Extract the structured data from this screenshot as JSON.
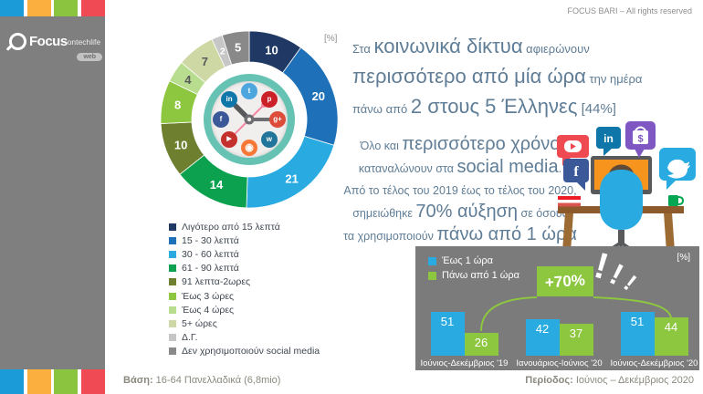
{
  "page": {
    "copyright": "FOCUS BARI – All rights reserved"
  },
  "sidebar": {
    "logo_focus": "Focus",
    "logo_suffix": "ontechlife",
    "badge": "web"
  },
  "decor_squares": [
    "#1b9cd8",
    "#fbaf3f",
    "#8bc540",
    "#f04b54"
  ],
  "headline1": {
    "lines": [
      [
        {
          "text": "Στα ",
          "size": "sm"
        },
        {
          "text": "κοινωνικά δίκτυα",
          "size": "lg"
        },
        {
          "text": " αφιερώνουν",
          "size": "sm"
        }
      ],
      [
        {
          "text": "περισσότερο από μία ώρα",
          "size": "lg"
        },
        {
          "text": " την ημέρα",
          "size": "sm"
        }
      ],
      [
        {
          "text": "πάνω από ",
          "size": "sm"
        },
        {
          "text": "2 στους 5 Έλληνες",
          "size": "lg"
        },
        {
          "text": " [44%]",
          "size": "md"
        }
      ]
    ]
  },
  "headline2": {
    "lines": [
      [
        {
          "text": "Όλο και ",
          "size": "sm"
        },
        {
          "text": "περισσότερο χρόνο",
          "size": "lg"
        }
      ],
      [
        {
          "text": "καταναλώνουν στα ",
          "size": "sm"
        },
        {
          "text": "social media",
          "size": "lg"
        },
        {
          "text": ".",
          "size": "sm"
        }
      ],
      [
        {
          "text": "Από το τέλος του 2019 έως το τέλος του 2020,",
          "size": "sm"
        }
      ],
      [
        {
          "text": "σημειώθηκε ",
          "size": "sm"
        },
        {
          "text": "70% αύξηση",
          "size": "lg"
        },
        {
          "text": " σε όσους",
          "size": "sm"
        }
      ],
      [
        {
          "text": "τα χρησιμοποιούν ",
          "size": "sm"
        },
        {
          "text": "πάνω από 1 ώρα",
          "size": "lg"
        }
      ]
    ]
  },
  "chart_data": [
    {
      "type": "pie",
      "subtype": "donut",
      "unit": "[%]",
      "legend_position": "bottom-left",
      "segments": [
        {
          "label": "Λιγότερο από 15 λεπτά",
          "value": 10,
          "color": "#1f3864"
        },
        {
          "label": "15 - 30 λεπτά",
          "value": 20,
          "color": "#1e71b8"
        },
        {
          "label": "30 - 60 λεπτά",
          "value": 21,
          "color": "#29abe2"
        },
        {
          "label": "61 - 90 λεπτά",
          "value": 14,
          "color": "#0ba14e"
        },
        {
          "label": "91 λεπτα-2ωρες",
          "value": 10,
          "color": "#6e7f2f"
        },
        {
          "label": "Έως 3 ώρες",
          "value": 8,
          "color": "#8dc63f"
        },
        {
          "label": "Έως 4 ώρες",
          "value": 4,
          "color": "#b9dd8e",
          "label_color": "#58595b"
        },
        {
          "label": "5+ ώρες",
          "value": 7,
          "color": "#cdd8a5",
          "label_color": "#58595b"
        },
        {
          "label": "Δ.Γ.",
          "value": 2,
          "color": "#c6c6c6"
        },
        {
          "label": "Δεν χρησιμοποιούν social media",
          "value": 5,
          "color": "#898989"
        }
      ]
    },
    {
      "type": "bar",
      "unit": "[%]",
      "categories": [
        "Ιούνιος-Δεκέμβριος '19",
        "Ιανουάριος-Ιούνιος '20",
        "Ιούνιος-Δεκέμβριος '20"
      ],
      "series": [
        {
          "name": "Έως 1 ώρα",
          "color": "#29abe2",
          "values": [
            51,
            42,
            51
          ]
        },
        {
          "name": "Πάνω από 1 ώρα",
          "color": "#8dc63f",
          "values": [
            26,
            37,
            44
          ]
        }
      ],
      "annotation": "+70%",
      "annotation_links": [
        "26",
        "44"
      ]
    }
  ],
  "clock": {
    "ring_color": "#66c3b4",
    "icons": [
      {
        "name": "twitter",
        "glyph": "t",
        "color": "#4da7de",
        "angle": 0
      },
      {
        "name": "pinterest",
        "glyph": "p",
        "color": "#cb2027",
        "angle": 45
      },
      {
        "name": "google-plus",
        "glyph": "g+",
        "color": "#dd4b39",
        "angle": 90
      },
      {
        "name": "wordpress",
        "glyph": "w",
        "color": "#21759b",
        "angle": 135
      },
      {
        "name": "instagram",
        "glyph": "◉",
        "color": "#f77737",
        "angle": 180
      },
      {
        "name": "youtube",
        "glyph": "▶",
        "color": "#c4302b",
        "angle": 225
      },
      {
        "name": "facebook",
        "glyph": "f",
        "color": "#3b5998",
        "angle": 270
      },
      {
        "name": "linkedin",
        "glyph": "in",
        "color": "#0e76a8",
        "angle": 315
      }
    ]
  },
  "illustration": {
    "bubbles": {
      "linkedin": "in",
      "facebook": "f",
      "shopping": "$"
    }
  },
  "footer": {
    "base_label": "Βάση:",
    "base_value": " 16-64 Πανελλαδικά (6,8mio)",
    "period_label": "Περίοδος:",
    "period_value": " Ιούνιος – Δεκέμβριος 2020"
  },
  "colors": {
    "accent_blue": "#29abe2",
    "accent_green": "#8dc63f",
    "sidebar_gray": "#7f7f7f",
    "panel_gray": "#7b7b7b",
    "headline_text": "#5f7d96",
    "footer_text": "#8b897e",
    "clock_ring": "#66c3b4"
  }
}
